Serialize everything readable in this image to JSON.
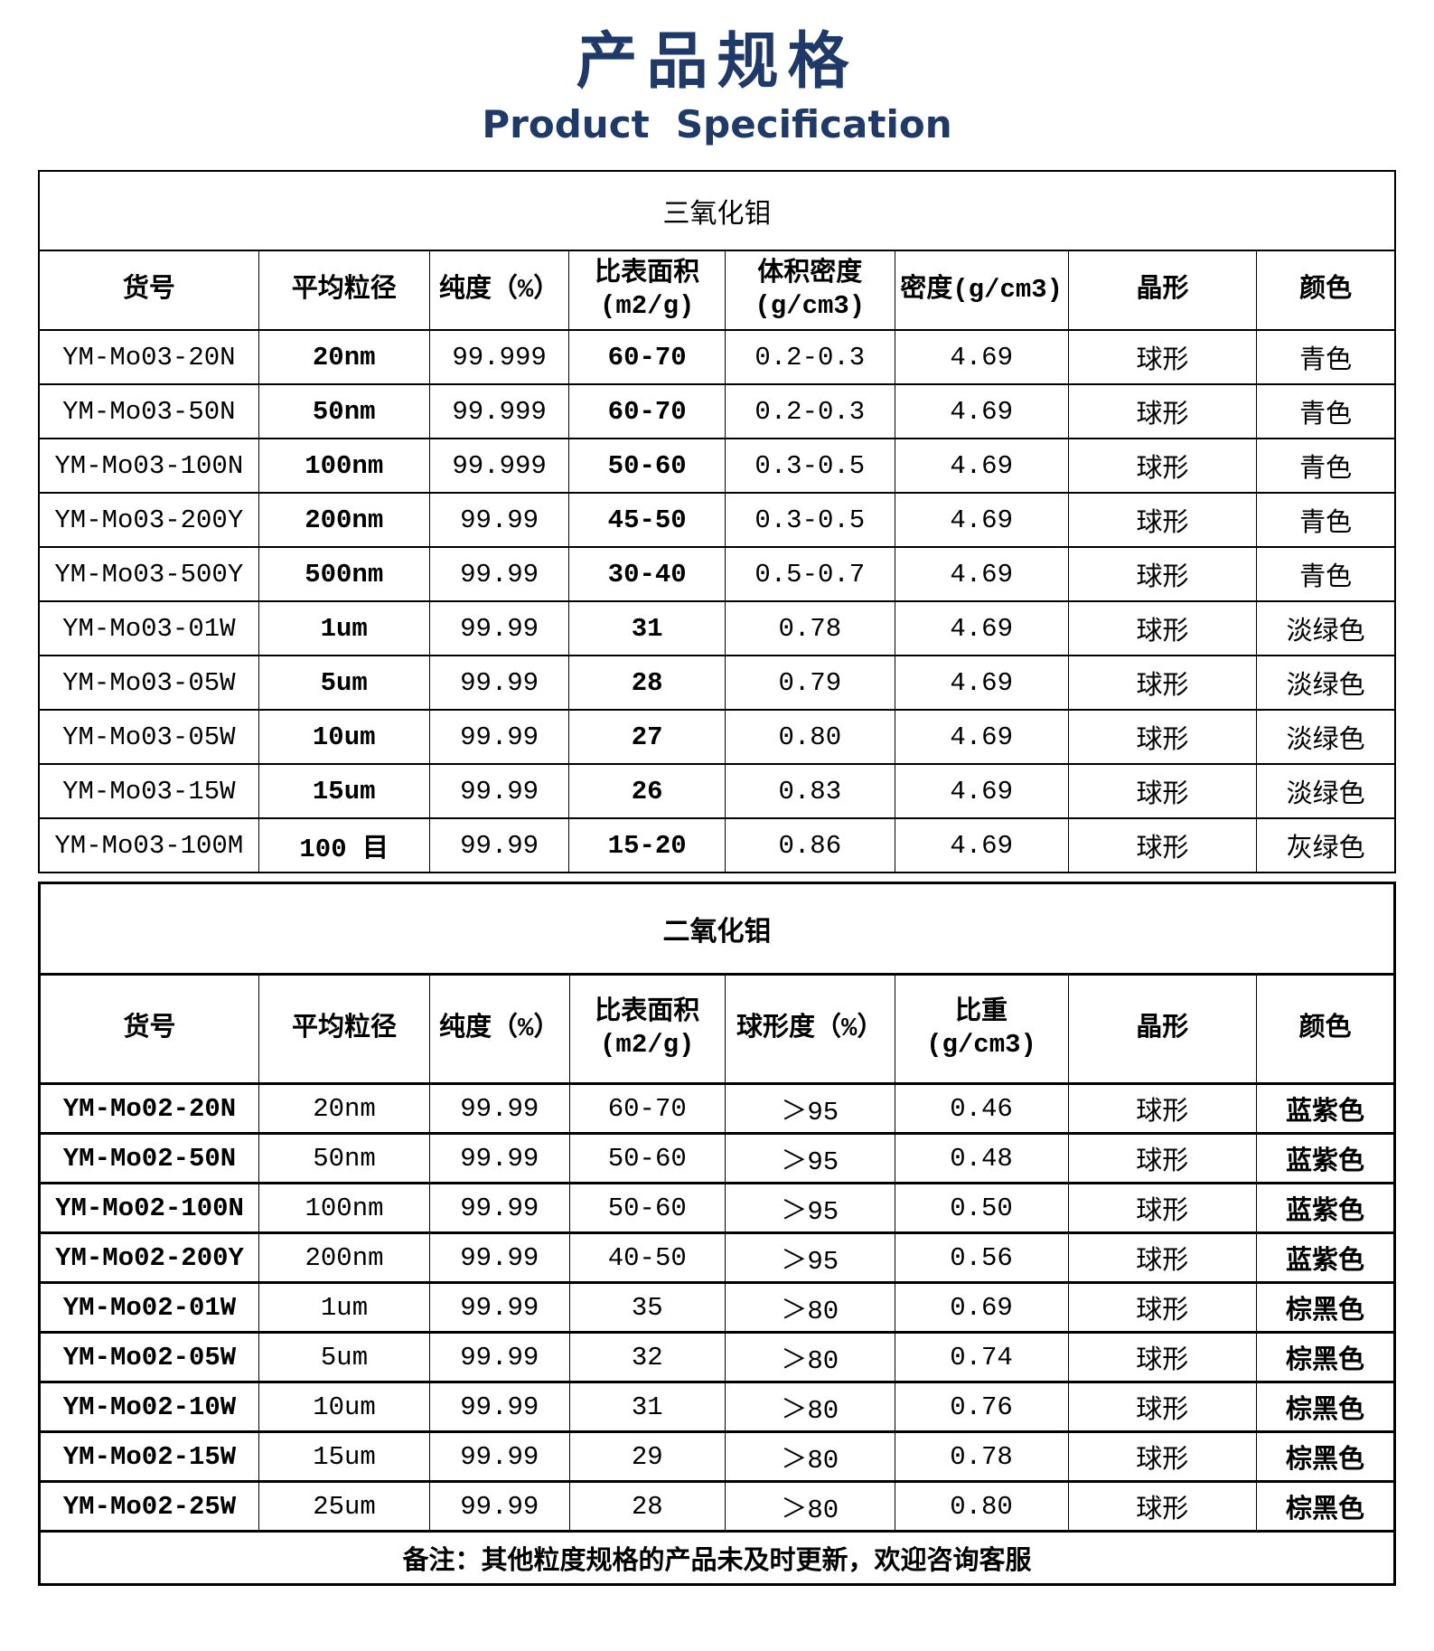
{
  "page": {
    "title_zh": "产品规格",
    "title_en": "Product  Specification",
    "accent_color": "#1f3a68"
  },
  "table1": {
    "title": "三氧化钼",
    "headers": [
      "货号",
      "平均粒径",
      "纯度（%）",
      "比表面积\n(m2/g)",
      "体积密度\n(g/cm3)",
      "密度(g/cm3)",
      "晶形",
      "颜色"
    ],
    "rows": [
      [
        "YM-Mo03-20N",
        "20nm",
        "99.999",
        "60-70",
        "0.2-0.3",
        "4.69",
        "球形",
        "青色"
      ],
      [
        "YM-Mo03-50N",
        "50nm",
        "99.999",
        "60-70",
        "0.2-0.3",
        "4.69",
        "球形",
        "青色"
      ],
      [
        "YM-Mo03-100N",
        "100nm",
        "99.999",
        "50-60",
        "0.3-0.5",
        "4.69",
        "球形",
        "青色"
      ],
      [
        "YM-Mo03-200Y",
        "200nm",
        "99.99",
        "45-50",
        "0.3-0.5",
        "4.69",
        "球形",
        "青色"
      ],
      [
        "YM-Mo03-500Y",
        "500nm",
        "99.99",
        "30-40",
        "0.5-0.7",
        "4.69",
        "球形",
        "青色"
      ],
      [
        "YM-Mo03-01W",
        "1um",
        "99.99",
        "31",
        "0.78",
        "4.69",
        "球形",
        "淡绿色"
      ],
      [
        "YM-Mo03-05W",
        "5um",
        "99.99",
        "28",
        "0.79",
        "4.69",
        "球形",
        "淡绿色"
      ],
      [
        "YM-Mo03-05W",
        "10um",
        "99.99",
        "27",
        "0.80",
        "4.69",
        "球形",
        "淡绿色"
      ],
      [
        "YM-Mo03-15W",
        "15um",
        "99.99",
        "26",
        "0.83",
        "4.69",
        "球形",
        "淡绿色"
      ],
      [
        "YM-Mo03-100M",
        "100 目",
        "99.99",
        "15-20",
        "0.86",
        "4.69",
        "球形",
        "灰绿色"
      ]
    ]
  },
  "table2": {
    "title": "二氧化钼",
    "headers": [
      "货号",
      "平均粒径",
      "纯度（%）",
      "比表面积\n(m2/g)",
      "球形度（%）",
      "比重\n(g/cm3)",
      "晶形",
      "颜色"
    ],
    "rows": [
      [
        "YM-Mo02-20N",
        "20nm",
        "99.99",
        "60-70",
        "＞95",
        "0.46",
        "球形",
        "蓝紫色"
      ],
      [
        "YM-Mo02-50N",
        "50nm",
        "99.99",
        "50-60",
        "＞95",
        "0.48",
        "球形",
        "蓝紫色"
      ],
      [
        "YM-Mo02-100N",
        "100nm",
        "99.99",
        "50-60",
        "＞95",
        "0.50",
        "球形",
        "蓝紫色"
      ],
      [
        "YM-Mo02-200Y",
        "200nm",
        "99.99",
        "40-50",
        "＞95",
        "0.56",
        "球形",
        "蓝紫色"
      ],
      [
        "YM-Mo02-01W",
        "1um",
        "99.99",
        "35",
        "＞80",
        "0.69",
        "球形",
        "棕黑色"
      ],
      [
        "YM-Mo02-05W",
        "5um",
        "99.99",
        "32",
        "＞80",
        "0.74",
        "球形",
        "棕黑色"
      ],
      [
        "YM-Mo02-10W",
        "10um",
        "99.99",
        "31",
        "＞80",
        "0.76",
        "球形",
        "棕黑色"
      ],
      [
        "YM-Mo02-15W",
        "15um",
        "99.99",
        "29",
        "＞80",
        "0.78",
        "球形",
        "棕黑色"
      ],
      [
        "YM-Mo02-25W",
        "25um",
        "99.99",
        "28",
        "＞80",
        "0.80",
        "球形",
        "棕黑色"
      ]
    ],
    "note": "备注：其他粒度规格的产品未及时更新，欢迎咨询客服"
  }
}
